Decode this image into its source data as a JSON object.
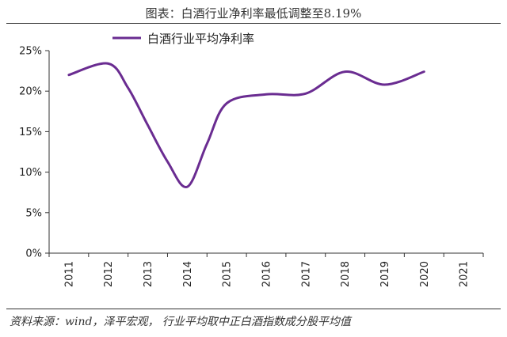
{
  "header": {
    "title": "图表：白酒行业净利率最低调整至8.19%"
  },
  "footer": {
    "source": "资料来源：wind，泽平宏观，  行业平均取中正白酒指数成分股平均值"
  },
  "chart_data": {
    "type": "line",
    "title": "图表：白酒行业净利率最低调整至8.19%",
    "xlabel": "",
    "ylabel": "",
    "x": [
      "2011",
      "2012",
      "2013",
      "2014",
      "2015",
      "2016",
      "2017",
      "2018",
      "2019",
      "2020",
      "2021"
    ],
    "y_ticks": [
      "0%",
      "5%",
      "10%",
      "15%",
      "20%",
      "25%"
    ],
    "ylim": [
      0,
      25
    ],
    "grid": false,
    "legend": "top-left",
    "series": [
      {
        "name": "白酒行业平均净利率",
        "color": "#6a2c91",
        "points": [
          {
            "x": 2011,
            "y": 22.0
          },
          {
            "x": 2012,
            "y": 23.4
          },
          {
            "x": 2012.5,
            "y": 20.4
          },
          {
            "x": 2013,
            "y": 15.8
          },
          {
            "x": 2013.5,
            "y": 11.3
          },
          {
            "x": 2014,
            "y": 8.19
          },
          {
            "x": 2014.5,
            "y": 13.5
          },
          {
            "x": 2015,
            "y": 18.5
          },
          {
            "x": 2016,
            "y": 19.6
          },
          {
            "x": 2017,
            "y": 19.7
          },
          {
            "x": 2018,
            "y": 22.4
          },
          {
            "x": 2019,
            "y": 20.8
          },
          {
            "x": 2020,
            "y": 22.4
          }
        ]
      }
    ]
  }
}
